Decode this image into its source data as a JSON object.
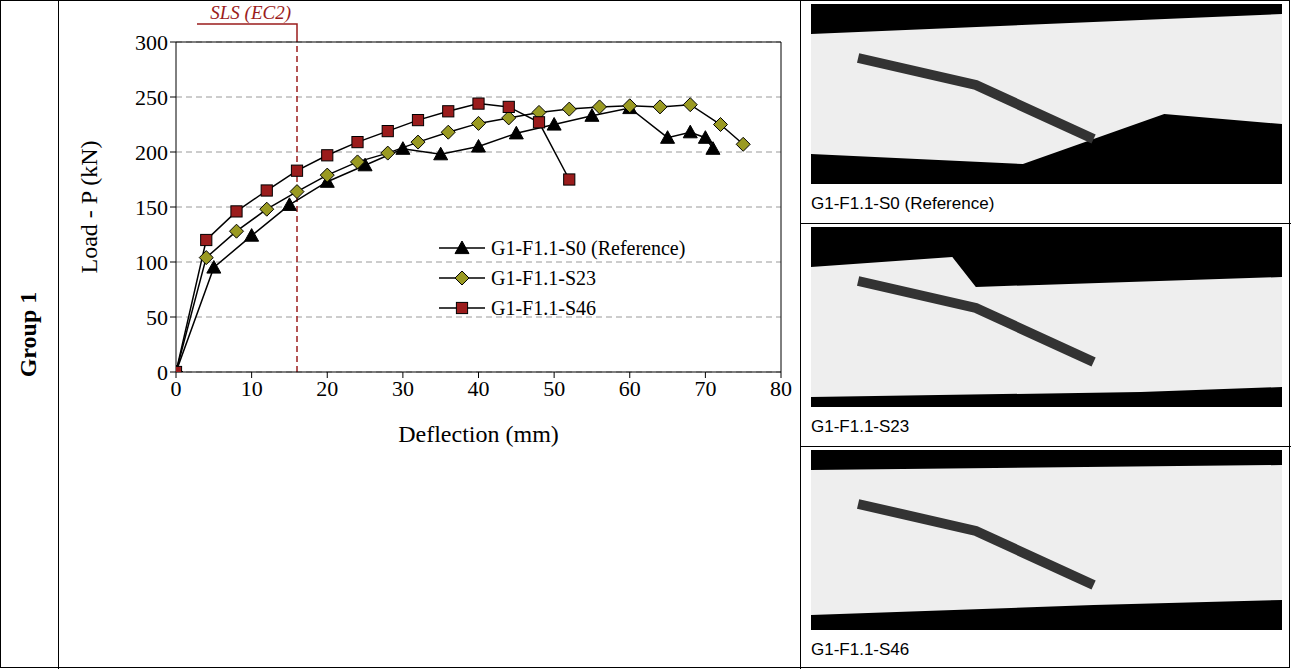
{
  "row_label": "Group 1",
  "chart_data": {
    "type": "line",
    "x_label": "Deflection (mm)",
    "y_label": "Load - P (kN)",
    "xlim": [
      0,
      80
    ],
    "xticks": [
      0,
      10,
      20,
      30,
      40,
      50,
      60,
      70,
      80
    ],
    "ylim": [
      0,
      300
    ],
    "yticks": [
      0,
      50,
      100,
      150,
      200,
      250,
      300
    ],
    "grid": true,
    "legend": "lower right",
    "annotations": [
      {
        "text": "SLS (EC2)",
        "x": 16
      }
    ],
    "series": [
      {
        "name": "G1-F1.1-S0 (Reference)",
        "color": "#000000",
        "marker": "triangle",
        "x": [
          0,
          5,
          10,
          15,
          20,
          25,
          30,
          35,
          40,
          45,
          50,
          55,
          60,
          65,
          68,
          70,
          71
        ],
        "values": [
          0,
          95,
          124,
          152,
          173,
          188,
          203,
          198,
          205,
          217,
          225,
          233,
          240,
          213,
          218,
          213,
          203
        ]
      },
      {
        "name": "G1-F1.1-S23",
        "color": "#9a9a22",
        "marker": "diamond",
        "x": [
          0,
          4,
          8,
          12,
          16,
          20,
          24,
          28,
          32,
          36,
          40,
          44,
          48,
          52,
          56,
          60,
          64,
          68,
          72,
          75
        ],
        "values": [
          0,
          104,
          128,
          148,
          164,
          179,
          191,
          199,
          209,
          218,
          226,
          231,
          236,
          239,
          241,
          242,
          241,
          243,
          225,
          207
        ]
      },
      {
        "name": "G1-F1.1-S46",
        "color": "#9b1c1c",
        "marker": "square",
        "x": [
          0,
          4,
          8,
          12,
          16,
          20,
          24,
          28,
          32,
          36,
          40,
          44,
          48,
          52
        ],
        "values": [
          0,
          120,
          146,
          165,
          183,
          197,
          209,
          219,
          229,
          237,
          244,
          241,
          227,
          175
        ]
      }
    ]
  },
  "photos": [
    {
      "caption": "G1-F1.1-S0 (Reference)"
    },
    {
      "caption": "G1-F1.1-S23"
    },
    {
      "caption": "G1-F1.1-S46"
    }
  ]
}
